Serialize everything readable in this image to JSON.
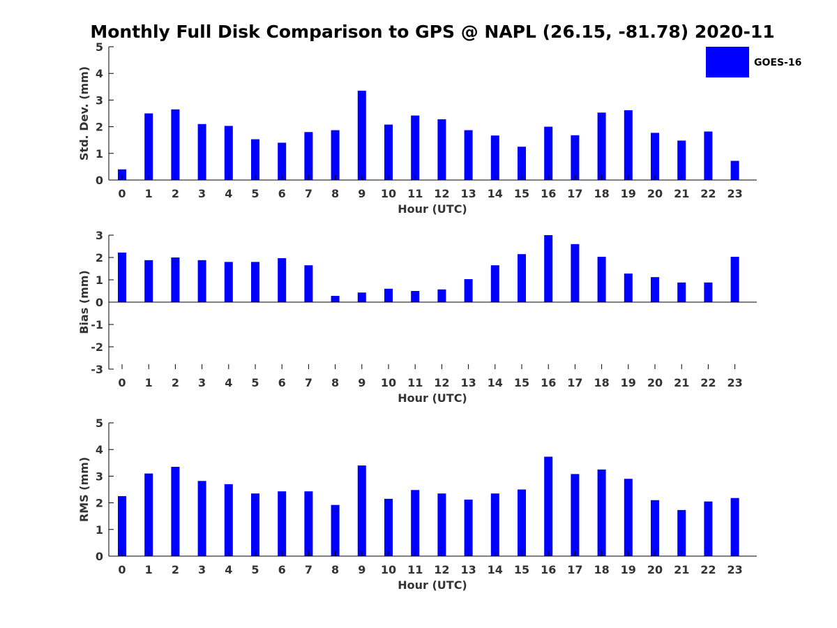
{
  "title": "Monthly Full Disk Comparison to GPS @ NAPL (26.15, -81.78) 2020-11",
  "legend": {
    "label": "GOES-16",
    "position": "top-right"
  },
  "colors": {
    "bar": "#0000ff",
    "axis": "#000000",
    "text": "#333333"
  },
  "chart_data": [
    {
      "type": "bar",
      "xlabel": "Hour (UTC)",
      "ylabel": "Std. Dev. (mm)",
      "ylim": [
        0,
        5
      ],
      "yticks": [
        0,
        1,
        2,
        3,
        4,
        5
      ],
      "grid": false,
      "categories": [
        "0",
        "1",
        "2",
        "3",
        "4",
        "5",
        "6",
        "7",
        "8",
        "9",
        "10",
        "11",
        "12",
        "13",
        "14",
        "15",
        "16",
        "17",
        "18",
        "19",
        "20",
        "21",
        "22",
        "23"
      ],
      "series": [
        {
          "name": "GOES-16",
          "values": [
            0.4,
            2.5,
            2.65,
            2.1,
            2.03,
            1.53,
            1.4,
            1.8,
            1.87,
            3.35,
            2.08,
            2.42,
            2.28,
            1.87,
            1.67,
            1.25,
            2.0,
            1.68,
            2.53,
            2.62,
            1.77,
            1.48,
            1.82,
            0.72
          ]
        }
      ]
    },
    {
      "type": "bar",
      "xlabel": "Hour (UTC)",
      "ylabel": "Bias (mm)",
      "ylim": [
        -3,
        3
      ],
      "yticks": [
        -3,
        -2,
        -1,
        0,
        1,
        2,
        3
      ],
      "grid": false,
      "categories": [
        "0",
        "1",
        "2",
        "3",
        "4",
        "5",
        "6",
        "7",
        "8",
        "9",
        "10",
        "11",
        "12",
        "13",
        "14",
        "15",
        "16",
        "17",
        "18",
        "19",
        "20",
        "21",
        "22",
        "23"
      ],
      "series": [
        {
          "name": "GOES-16",
          "values": [
            2.22,
            1.88,
            2.0,
            1.88,
            1.8,
            1.8,
            1.97,
            1.65,
            0.28,
            0.43,
            0.6,
            0.5,
            0.57,
            1.03,
            1.65,
            2.15,
            3.0,
            2.6,
            2.03,
            1.28,
            1.12,
            0.88,
            0.88,
            2.03
          ]
        }
      ]
    },
    {
      "type": "bar",
      "xlabel": "Hour (UTC)",
      "ylabel": "RMS (mm)",
      "ylim": [
        0,
        5
      ],
      "yticks": [
        0,
        1,
        2,
        3,
        4,
        5
      ],
      "grid": false,
      "categories": [
        "0",
        "1",
        "2",
        "3",
        "4",
        "5",
        "6",
        "7",
        "8",
        "9",
        "10",
        "11",
        "12",
        "13",
        "14",
        "15",
        "16",
        "17",
        "18",
        "19",
        "20",
        "21",
        "22",
        "23"
      ],
      "series": [
        {
          "name": "GOES-16",
          "values": [
            2.25,
            3.1,
            3.35,
            2.82,
            2.7,
            2.35,
            2.43,
            2.43,
            1.92,
            3.4,
            2.15,
            2.48,
            2.35,
            2.12,
            2.35,
            2.5,
            3.73,
            3.08,
            3.25,
            2.9,
            2.1,
            1.73,
            2.05,
            2.18
          ]
        }
      ]
    }
  ]
}
